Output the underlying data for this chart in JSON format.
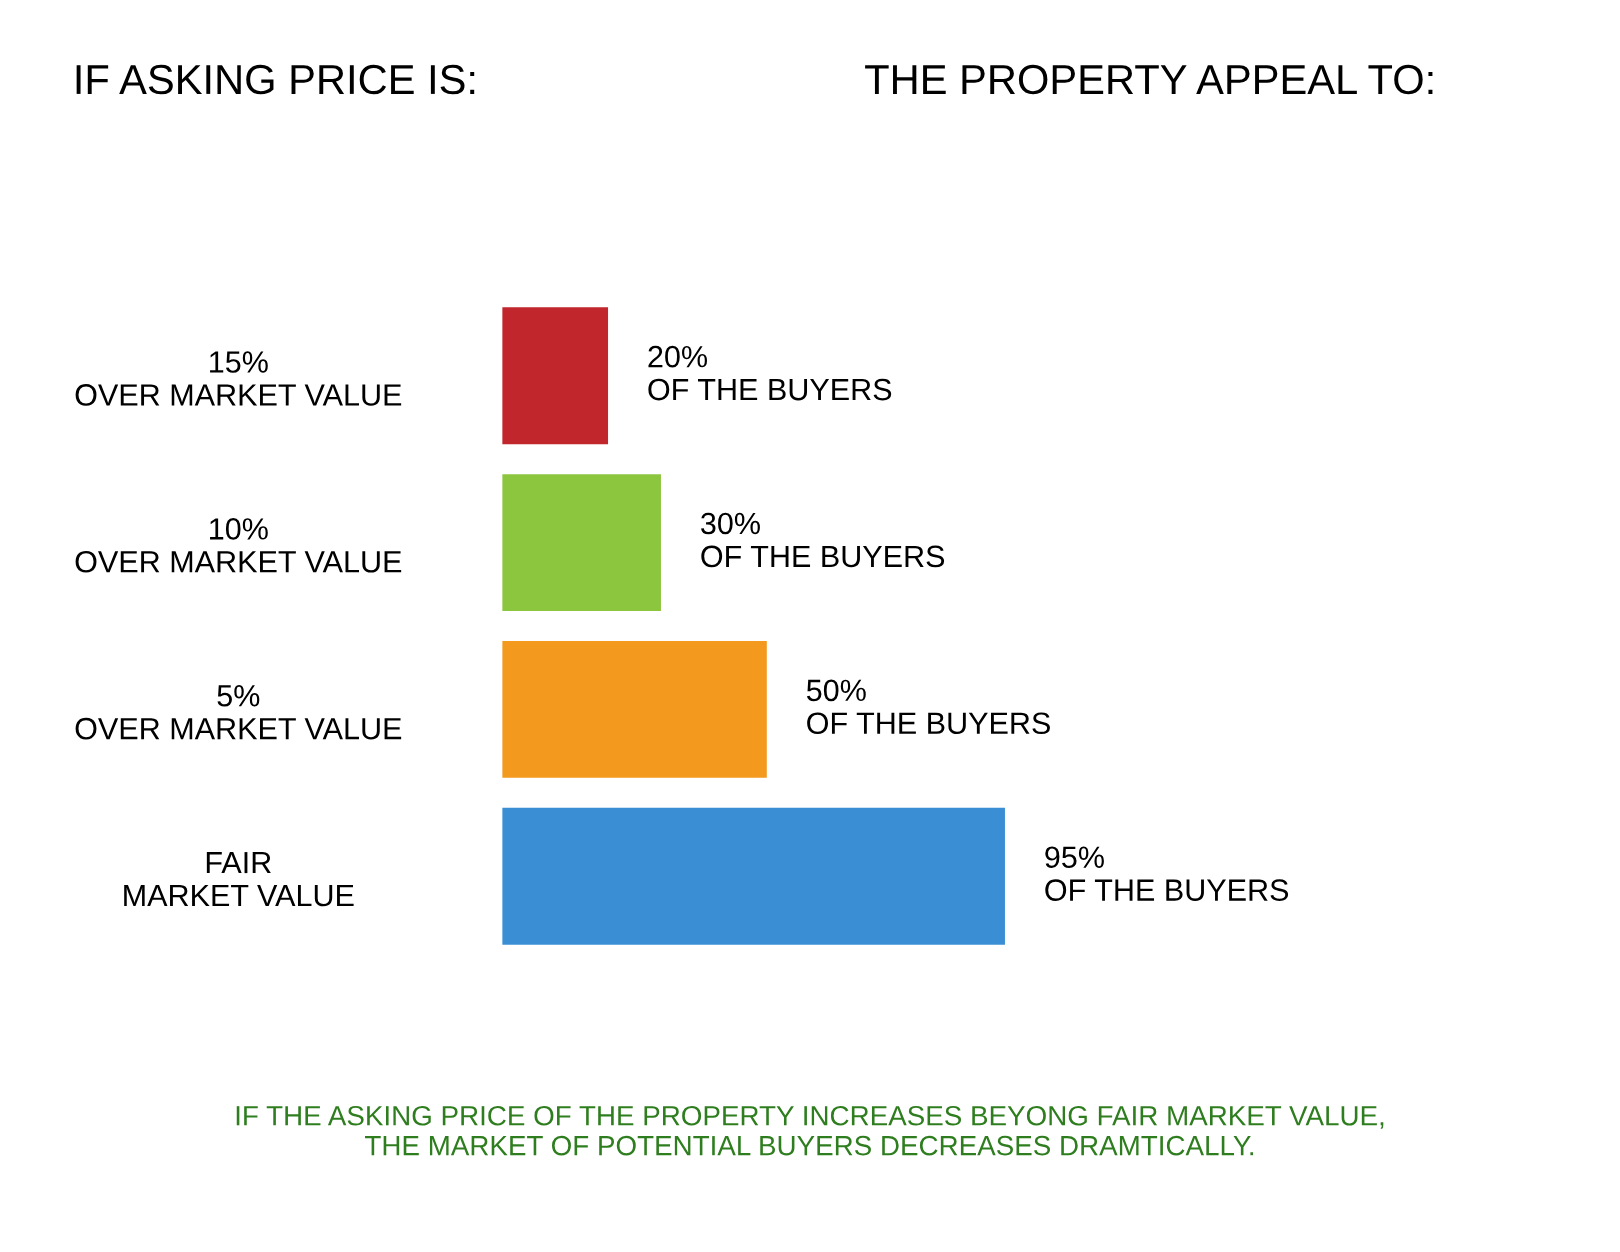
{
  "chart_data": {
    "type": "bar",
    "orientation": "horizontal",
    "title": "IF ASKING PRICE IS:",
    "subtitle": "THE PROPERTY APPEAL TO:",
    "categories": [
      "15%\nOVER MARKET VALUE",
      "10%\nOVER MARKET VALUE",
      "5%\nOVER MARKET VALUE",
      "FAIR\nMARKET VALUE"
    ],
    "values": [
      20,
      30,
      50,
      95
    ],
    "colors": [
      "#c0262c",
      "#8cc63f",
      "#f39a1e",
      "#3a8fd4"
    ],
    "value_labels": [
      "20%\nOF THE BUYERS",
      "30%\nOF THE BUYERS",
      "50%\nOF THE BUYERS",
      "95%\nOF THE BUYERS"
    ],
    "annotations": [
      "IF THE ASKING PRICE OF THE PROPERTY INCREASES BEYONG FAIR MARKET VALUE,\nTHE MARKET OF POTENTIAL BUYERS DECREASES DRAMTICALLY."
    ],
    "grid": false,
    "legend": false
  }
}
